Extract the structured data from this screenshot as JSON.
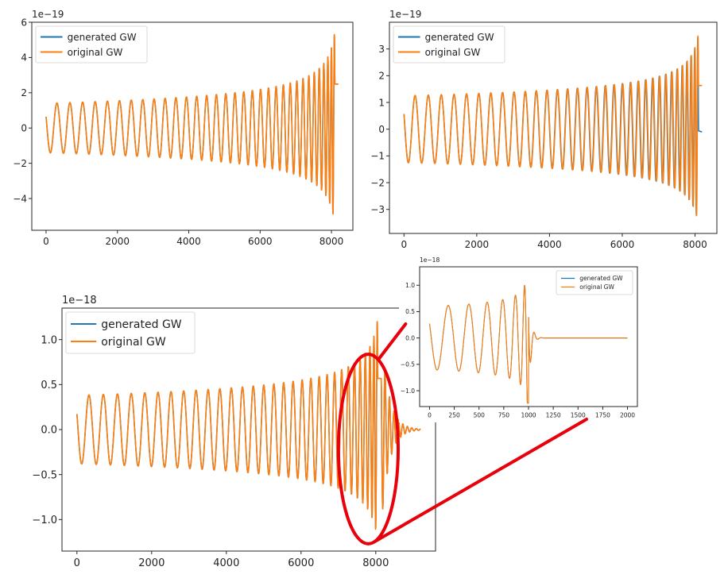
{
  "colors": {
    "generated": "#1f77b4",
    "original": "#ff7f0e",
    "highlight": "#e8000b",
    "axis": "#262626"
  },
  "chart_data": [
    {
      "type": "line",
      "id": "top-left",
      "title": "",
      "xlabel": "",
      "ylabel": "",
      "offset_label": "1e−19",
      "xlim": [
        -400,
        8600
      ],
      "ylim": [
        -5.8,
        6.0
      ],
      "x_ticks": [
        0,
        2000,
        4000,
        6000,
        8000
      ],
      "x_tick_labels": [
        "0",
        "2000",
        "4000",
        "6000",
        "8000"
      ],
      "y_ticks": [
        -4,
        -2,
        0,
        2,
        4,
        6
      ],
      "y_tick_labels": [
        "−4",
        "−2",
        "0",
        "2",
        "4",
        "6"
      ],
      "legend": {
        "location": "top-left",
        "entries": [
          "generated GW",
          "original GW"
        ]
      },
      "signal": {
        "x_start": 0,
        "x_end": 8192,
        "initial_amplitude": 1.4,
        "peak_amplitude": 5.5,
        "cycles": 33,
        "ringdown": false,
        "phase_mismatch": 0
      },
      "series": [
        {
          "name": "generated GW"
        },
        {
          "name": "original GW"
        }
      ]
    },
    {
      "type": "line",
      "id": "top-right",
      "title": "",
      "xlabel": "",
      "ylabel": "",
      "offset_label": "1e−19",
      "xlim": [
        -400,
        8600
      ],
      "ylim": [
        -3.9,
        4.0
      ],
      "x_ticks": [
        0,
        2000,
        4000,
        6000,
        8000
      ],
      "x_tick_labels": [
        "0",
        "2000",
        "4000",
        "6000",
        "8000"
      ],
      "y_ticks": [
        -3,
        -2,
        -1,
        0,
        1,
        2,
        3
      ],
      "y_tick_labels": [
        "−3",
        "−2",
        "−1",
        "0",
        "1",
        "2",
        "3"
      ],
      "legend": {
        "location": "top-left",
        "entries": [
          "generated GW",
          "original GW"
        ]
      },
      "signal": {
        "x_start": 0,
        "x_end": 8192,
        "initial_amplitude": 1.25,
        "peak_amplitude": 3.6,
        "cycles": 33,
        "ringdown": false,
        "phase_mismatch": 0.5
      },
      "series": [
        {
          "name": "generated GW"
        },
        {
          "name": "original GW"
        }
      ]
    },
    {
      "type": "line",
      "id": "bottom",
      "title": "",
      "xlabel": "",
      "ylabel": "",
      "offset_label": "1e−18",
      "xlim": [
        -400,
        9600
      ],
      "ylim": [
        -1.35,
        1.35
      ],
      "x_ticks": [
        0,
        2000,
        4000,
        6000,
        8000
      ],
      "x_tick_labels": [
        "0",
        "2000",
        "4000",
        "6000",
        "8000"
      ],
      "y_ticks": [
        -1.0,
        -0.5,
        0.0,
        0.5,
        1.0
      ],
      "y_tick_labels": [
        "−1.0",
        "−0.5",
        "0.0",
        "0.5",
        "1.0"
      ],
      "legend": {
        "location": "top-left",
        "entries": [
          "generated GW",
          "original GW"
        ]
      },
      "signal": {
        "x_start": 0,
        "x_end": 9200,
        "x_merger": 8150,
        "initial_amplitude": 0.38,
        "peak_amplitude": 1.25,
        "cycles": 31,
        "ringdown": true,
        "phase_mismatch": 0
      },
      "series": [
        {
          "name": "generated GW"
        },
        {
          "name": "original GW"
        }
      ]
    },
    {
      "type": "line",
      "id": "inset-zoom",
      "title": "",
      "xlabel": "",
      "ylabel": "",
      "offset_label": "1e−18",
      "xlim": [
        -100,
        2100
      ],
      "ylim": [
        -1.3,
        1.35
      ],
      "x_ticks": [
        0,
        250,
        500,
        750,
        1000,
        1250,
        1500,
        1750,
        2000
      ],
      "x_tick_labels": [
        "0",
        "250",
        "500",
        "750",
        "1000",
        "1250",
        "1500",
        "1750",
        "2000"
      ],
      "y_ticks": [
        -1.0,
        -0.5,
        0.0,
        0.5,
        1.0
      ],
      "y_tick_labels": [
        "−1.0",
        "−0.5",
        "0.0",
        "0.5",
        "1.0"
      ],
      "legend": {
        "location": "top-right",
        "entries": [
          "generated GW",
          "original GW"
        ]
      },
      "signal": {
        "x_start": 0,
        "x_end": 2000,
        "x_merger": 1000,
        "initial_amplitude": 0.6,
        "peak_amplitude": 1.25,
        "cycles": 6.3,
        "ringdown": true,
        "phase_mismatch": 0
      },
      "series": [
        {
          "name": "generated GW"
        },
        {
          "name": "original GW"
        }
      ]
    }
  ],
  "annotation": {
    "type": "zoom-callout",
    "from_chart": "bottom",
    "to_chart": "inset-zoom",
    "region_x": [
      7000,
      8600
    ]
  }
}
